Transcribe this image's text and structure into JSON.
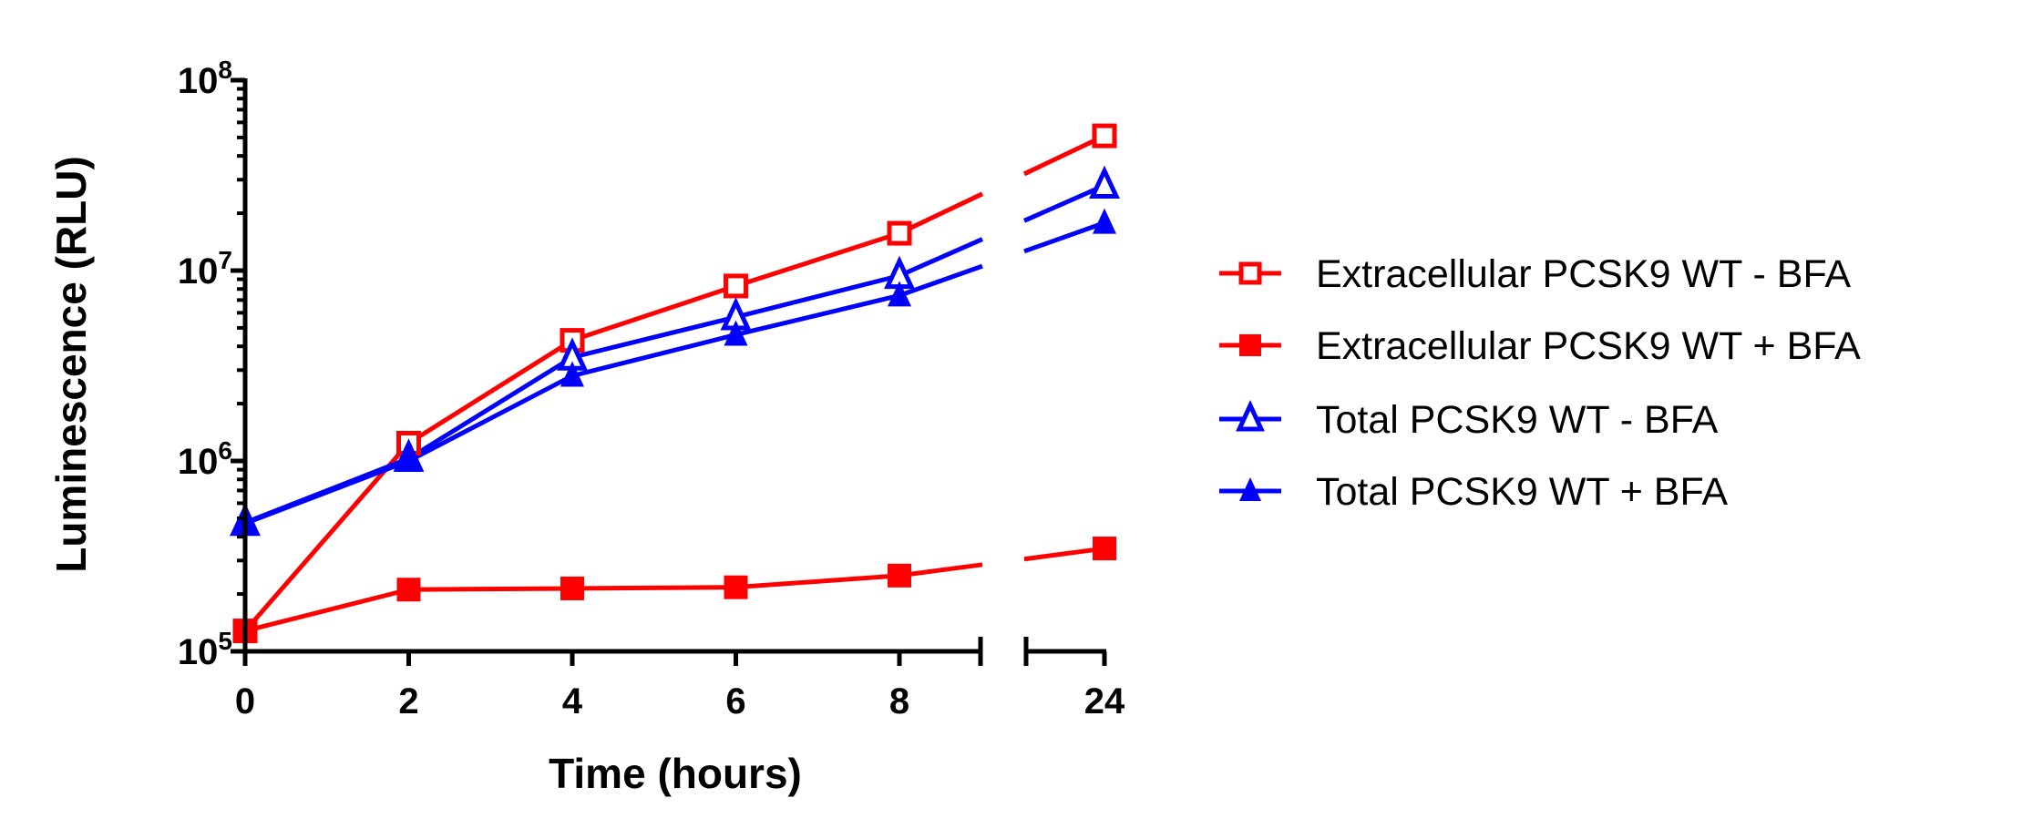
{
  "chart_data": {
    "type": "line",
    "title": "",
    "xlabel": "Time (hours)",
    "ylabel": "Luminescence (RLU)",
    "x": [
      0,
      2,
      4,
      6,
      8,
      24
    ],
    "x_tick_labels": [
      "0",
      "2",
      "4",
      "6",
      "8",
      "24"
    ],
    "x_axis_break": "between 8 and 24",
    "y_scale": "log",
    "ylim": [
      100000,
      100000000
    ],
    "y_tick_labels": [
      {
        "base": "10",
        "exp": "5"
      },
      {
        "base": "10",
        "exp": "6"
      },
      {
        "base": "10",
        "exp": "7"
      },
      {
        "base": "10",
        "exp": "8"
      }
    ],
    "grid": false,
    "legend_position": "right",
    "series": [
      {
        "name": "Extracellular PCSK9 WT - BFA",
        "color": "#ff0000",
        "marker": "open-square",
        "values": [
          128000,
          1240000,
          4300000,
          8300000,
          15700000,
          51000000
        ]
      },
      {
        "name": "Extracellular PCSK9 WT + BFA",
        "color": "#ff0000",
        "marker": "filled-square",
        "values": [
          128000,
          211000,
          214000,
          217000,
          250000,
          347000
        ]
      },
      {
        "name": "Total PCSK9 WT - BFA",
        "color": "#0000ff",
        "marker": "open-triangle",
        "values": [
          474000,
          1030000,
          3500000,
          5700000,
          9400000,
          28000000
        ]
      },
      {
        "name": "Total PCSK9 WT + BFA",
        "color": "#0000ff",
        "marker": "filled-triangle",
        "values": [
          470000,
          1000000,
          2800000,
          4600000,
          7400000,
          17800000
        ]
      }
    ]
  }
}
